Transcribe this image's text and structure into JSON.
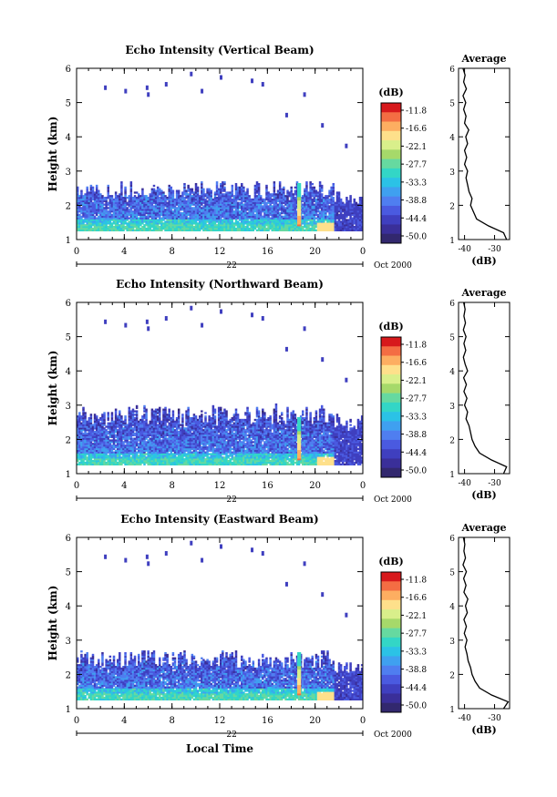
{
  "figure": {
    "bottom_label": "Local Time",
    "date_label": "Oct 2000",
    "day_label": "22",
    "colorbar_unit": "(dB)",
    "colorbar_ticks": [
      "-11.8",
      "-16.6",
      "-22.1",
      "-27.7",
      "-33.3",
      "-38.8",
      "-44.4",
      "-50.0"
    ],
    "colorbar_colors": [
      "#d7191c",
      "#f46d43",
      "#fdae61",
      "#fee08b",
      "#d9ef8b",
      "#a6d96a",
      "#66d9a0",
      "#33d6c6",
      "#2bc2e6",
      "#3fa0f0",
      "#4f7ef0",
      "#4a5ae0",
      "#3f3fbf",
      "#3a2f99",
      "#32286e"
    ],
    "panel_title_average": "Average",
    "avg_xlabel": "(dB)"
  },
  "chart_data": [
    {
      "type": "heatmap",
      "title": "Echo Intensity (Vertical Beam)",
      "ylabel": "Height (km)",
      "xlabel": "Local Time",
      "xlim": [
        0,
        24
      ],
      "ylim": [
        1,
        6
      ],
      "xticks": [
        "0",
        "4",
        "8",
        "12",
        "16",
        "20",
        "0"
      ],
      "yticks": [
        "1",
        "2",
        "3",
        "4",
        "5",
        "6"
      ],
      "colorbar": {
        "unit": "(dB)",
        "ticks": [
          "-11.8",
          "-16.6",
          "-22.1",
          "-27.7",
          "-33.3",
          "-38.8",
          "-44.4",
          "-50.0"
        ]
      },
      "average_profile": {
        "title": "Average",
        "xlabel": "(dB)",
        "xticks": [
          "-40",
          "-30"
        ],
        "xlim": [
          -42,
          -25
        ],
        "ylim": [
          1,
          6
        ],
        "heights": [
          1.0,
          1.2,
          1.4,
          1.6,
          1.8,
          2.0,
          2.2,
          2.4,
          2.6,
          2.8,
          3.0,
          3.2,
          3.4,
          3.6,
          3.8,
          4.0,
          4.2,
          4.4,
          4.6,
          4.8,
          5.0,
          5.2,
          5.4,
          5.6,
          5.8,
          6.0
        ],
        "values": [
          -26,
          -27,
          -32,
          -36,
          -37,
          -38,
          -37.5,
          -38.5,
          -39,
          -39.5,
          -39,
          -40,
          -39.3,
          -40,
          -39,
          -39.6,
          -38.6,
          -40,
          -39.5,
          -40.3,
          -39.6,
          -40.5,
          -39.4,
          -40.3,
          -39.8,
          -40.5
        ]
      }
    },
    {
      "type": "heatmap",
      "title": "Echo Intensity (Northward Beam)",
      "ylabel": "Height (km)",
      "xlabel": "Local Time",
      "xlim": [
        0,
        24
      ],
      "ylim": [
        1,
        6
      ],
      "xticks": [
        "0",
        "4",
        "8",
        "12",
        "16",
        "20",
        "0"
      ],
      "yticks": [
        "1",
        "2",
        "3",
        "4",
        "5",
        "6"
      ],
      "colorbar": {
        "unit": "(dB)",
        "ticks": [
          "-11.8",
          "-16.6",
          "-22.1",
          "-27.7",
          "-33.3",
          "-38.8",
          "-44.4",
          "-50.0"
        ]
      },
      "average_profile": {
        "title": "Average",
        "xlabel": "(dB)",
        "xticks": [
          "-40",
          "-30"
        ],
        "xlim": [
          -42,
          -25
        ],
        "ylim": [
          1,
          6
        ],
        "heights": [
          1.0,
          1.2,
          1.4,
          1.6,
          1.8,
          2.0,
          2.2,
          2.4,
          2.6,
          2.8,
          3.0,
          3.2,
          3.4,
          3.6,
          3.8,
          4.0,
          4.2,
          4.4,
          4.6,
          4.8,
          5.0,
          5.2,
          5.4,
          5.6,
          5.8,
          6.0
        ],
        "values": [
          -27,
          -26,
          -31,
          -35,
          -36.5,
          -37.5,
          -38,
          -38.5,
          -39.5,
          -39,
          -40,
          -39.2,
          -40.2,
          -39.4,
          -40.3,
          -39,
          -39.8,
          -40.4,
          -39.6,
          -40.2,
          -39.5,
          -40.4,
          -39.7,
          -40.2,
          -39.8,
          -40.3
        ]
      }
    },
    {
      "type": "heatmap",
      "title": "Echo Intensity (Eastward Beam)",
      "ylabel": "Height (km)",
      "xlabel": "Local Time",
      "xlim": [
        0,
        24
      ],
      "ylim": [
        1,
        6
      ],
      "xticks": [
        "0",
        "4",
        "8",
        "12",
        "16",
        "20",
        "0"
      ],
      "yticks": [
        "1",
        "2",
        "3",
        "4",
        "5",
        "6"
      ],
      "colorbar": {
        "unit": "(dB)",
        "ticks": [
          "-11.8",
          "-16.6",
          "-22.1",
          "-27.7",
          "-33.3",
          "-38.8",
          "-44.4",
          "-50.0"
        ]
      },
      "average_profile": {
        "title": "Average",
        "xlabel": "(dB)",
        "xticks": [
          "-40",
          "-30"
        ],
        "xlim": [
          -42,
          -25
        ],
        "ylim": [
          1,
          6
        ],
        "heights": [
          1.0,
          1.2,
          1.4,
          1.6,
          1.8,
          2.0,
          2.2,
          2.4,
          2.6,
          2.8,
          3.0,
          3.2,
          3.4,
          3.6,
          3.8,
          4.0,
          4.2,
          4.4,
          4.6,
          4.8,
          5.0,
          5.2,
          5.4,
          5.6,
          5.8,
          6.0
        ],
        "values": [
          -27,
          -25.5,
          -31,
          -35,
          -36.5,
          -37.5,
          -38,
          -38.8,
          -39.2,
          -39.8,
          -39.2,
          -40.1,
          -39.4,
          -40.2,
          -39.1,
          -39.7,
          -38.9,
          -40.2,
          -39.5,
          -40.3,
          -39.4,
          -40.5,
          -39.7,
          -40.2,
          -39.9,
          -40.4
        ]
      }
    }
  ]
}
